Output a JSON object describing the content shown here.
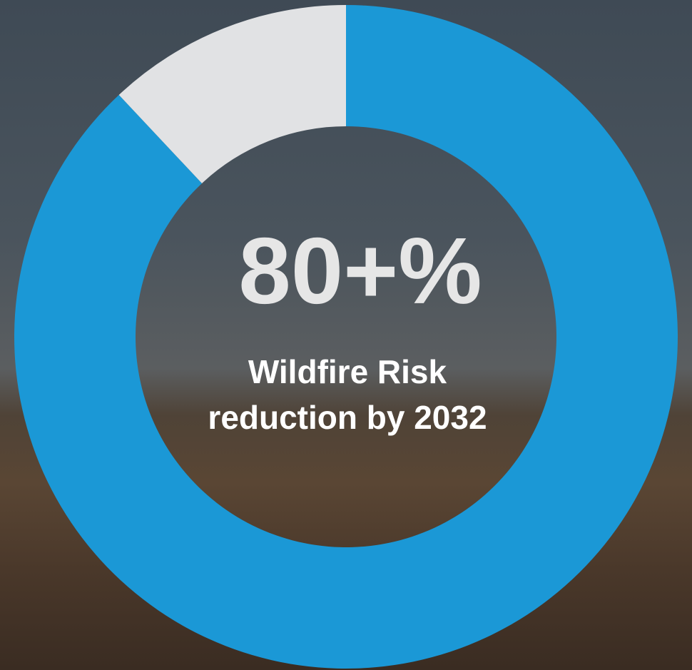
{
  "chart_data": {
    "type": "donut",
    "values": [
      88,
      12
    ],
    "colors": [
      "#1b98d6",
      "#e1e2e4"
    ],
    "center_label": "80+%",
    "subtitle_lines": [
      "Wildfire Risk",
      "reduction by 2032"
    ]
  }
}
